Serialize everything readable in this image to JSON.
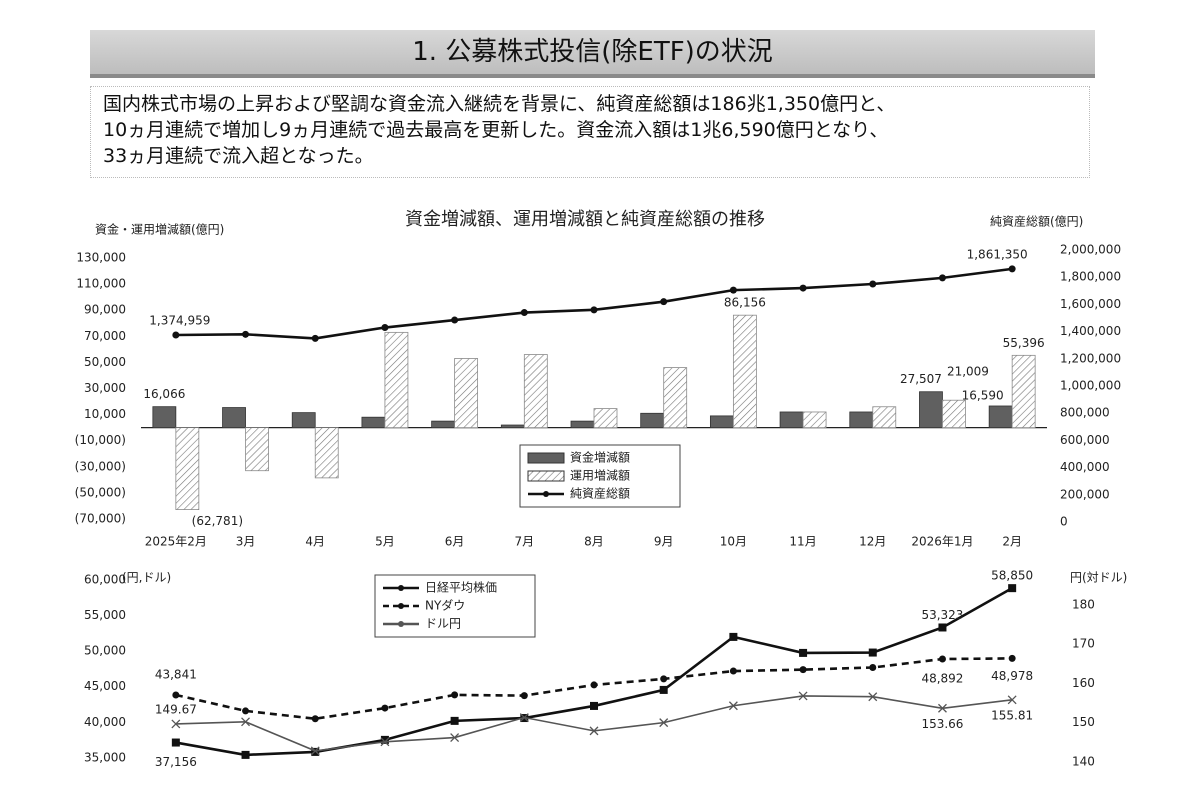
{
  "header": {
    "title": "1. 公募株式投信(除ETF)の状況"
  },
  "summary": [
    "国内株式市場の上昇および堅調な資金流入継続を背景に、純資産総額は186兆1,350億円と、",
    "10ヵ月連続で増加し9ヵ月連続で過去最高を更新した。資金流入額は1兆6,590億円となり、",
    "33ヵ月連続で流入超となった。"
  ],
  "chart_data": [
    {
      "type": "bar",
      "title": "資金増減額、運用増減額と純資産総額の推移",
      "y_label": "資金・運用増減額(億円)",
      "y2_label": "純資産総額(億円)",
      "categories": [
        "2025年2月",
        "3月",
        "4月",
        "5月",
        "6月",
        "7月",
        "8月",
        "9月",
        "10月",
        "11月",
        "12月",
        "2026年1月",
        "2月"
      ],
      "series": [
        {
          "name": "資金増減額",
          "type": "bar",
          "color": "#606060",
          "pattern": "solid",
          "values": [
            16066,
            15400,
            11500,
            8000,
            5000,
            2000,
            5000,
            11000,
            9000,
            12000,
            12000,
            27507,
            16590
          ],
          "value_labels": [
            "16,066",
            null,
            null,
            null,
            null,
            null,
            null,
            null,
            null,
            null,
            null,
            "27,507",
            "16,590"
          ]
        },
        {
          "name": "運用増減額",
          "type": "bar",
          "color": "#8a8a8a",
          "pattern": "hatch",
          "values": [
            -62781,
            -33000,
            -38500,
            73000,
            53000,
            56000,
            14600,
            46000,
            86156,
            12000,
            16000,
            21009,
            55396
          ],
          "value_labels": [
            "(62,781)",
            null,
            null,
            null,
            null,
            null,
            null,
            null,
            "86,156",
            null,
            null,
            "21,009",
            "55,396"
          ]
        },
        {
          "name": "純資産総額",
          "type": "line",
          "axis": "y2",
          "color": "#111111",
          "marker": "circle",
          "values": [
            1374959,
            1380000,
            1350000,
            1430000,
            1485000,
            1540000,
            1560000,
            1620000,
            1705000,
            1720000,
            1750000,
            1795000,
            1861350
          ],
          "value_labels": [
            "1,374,959",
            null,
            null,
            null,
            null,
            null,
            null,
            null,
            null,
            null,
            null,
            null,
            "1,861,350"
          ]
        }
      ],
      "ylim": [
        -72300,
        136100
      ],
      "yticks": [
        {
          "value": 130000,
          "label": "130,000"
        },
        {
          "value": 110000,
          "label": "110,000"
        },
        {
          "value": 90000,
          "label": "90,000"
        },
        {
          "value": 70000,
          "label": "70,000"
        },
        {
          "value": 50000,
          "label": "50,000"
        },
        {
          "value": 30000,
          "label": "30,000"
        },
        {
          "value": 10000,
          "label": "10,000"
        },
        {
          "value": -10000,
          "label": "(10,000)"
        },
        {
          "value": -30000,
          "label": "(30,000)"
        },
        {
          "value": -50000,
          "label": "(50,000)"
        },
        {
          "value": -70000,
          "label": "(70,000)"
        }
      ],
      "y2lim": [
        0,
        2000000
      ],
      "y2ticks": [
        {
          "value": 2000000,
          "label": "2,000,000"
        },
        {
          "value": 1800000,
          "label": "1,800,000"
        },
        {
          "value": 1600000,
          "label": "1,600,000"
        },
        {
          "value": 1400000,
          "label": "1,400,000"
        },
        {
          "value": 1200000,
          "label": "1,200,000"
        },
        {
          "value": 1000000,
          "label": "1,000,000"
        },
        {
          "value": 800000,
          "label": "800,000"
        },
        {
          "value": 600000,
          "label": "600,000"
        },
        {
          "value": 400000,
          "label": "400,000"
        },
        {
          "value": 200000,
          "label": "200,000"
        },
        0
      ],
      "grid": false,
      "legend": "bottom-center"
    },
    {
      "type": "line",
      "y_label": "(円,ドル)",
      "y2_label": "円(対ドル)",
      "categories": [
        null,
        null,
        null,
        null,
        null,
        null,
        null,
        null,
        null,
        null,
        null,
        null,
        null
      ],
      "series": [
        {
          "name": "日経平均株価",
          "color": "#111111",
          "marker": "square",
          "dash": "solid",
          "values": [
            37156,
            35420,
            35840,
            37530,
            40200,
            40600,
            42300,
            44550,
            52000,
            49750,
            49800,
            53323,
            58850
          ],
          "value_labels": [
            "37,156",
            null,
            null,
            null,
            null,
            null,
            null,
            null,
            null,
            null,
            null,
            "53,323",
            "58,850"
          ]
        },
        {
          "name": "NYダウ",
          "color": "#111111",
          "marker": "circle",
          "dash": "dashed",
          "values": [
            43841,
            41600,
            40500,
            42000,
            43850,
            43750,
            45250,
            46100,
            47200,
            47400,
            47700,
            48892,
            48978
          ],
          "value_labels": [
            "43,841",
            null,
            null,
            null,
            null,
            null,
            null,
            null,
            null,
            null,
            null,
            "48,892",
            "48,978"
          ]
        },
        {
          "name": "ドル円",
          "axis": "y2",
          "color": "#555555",
          "marker": "x",
          "dash": "solid",
          "values": [
            149.67,
            150.2,
            142.8,
            145.1,
            146.2,
            151.3,
            147.9,
            150.0,
            154.3,
            156.8,
            156.6,
            153.66,
            155.81
          ],
          "value_labels": [
            "149.67",
            null,
            null,
            null,
            null,
            null,
            null,
            null,
            null,
            null,
            null,
            "153.66",
            "155.81"
          ]
        }
      ],
      "ylim": [
        34000,
        61400
      ],
      "yticks": [
        {
          "value": 60000,
          "label": "60,000"
        },
        {
          "value": 55000,
          "label": "55,000"
        },
        {
          "value": 50000,
          "label": "50,000"
        },
        {
          "value": 45000,
          "label": "45,000"
        },
        {
          "value": 40000,
          "label": "40,000"
        },
        {
          "value": 35000,
          "label": "35,000"
        }
      ],
      "y2lim": [
        139.2,
        188.9
      ],
      "y2ticks": [
        180,
        170,
        160,
        150,
        140
      ],
      "grid": false,
      "legend": "top-left"
    }
  ]
}
